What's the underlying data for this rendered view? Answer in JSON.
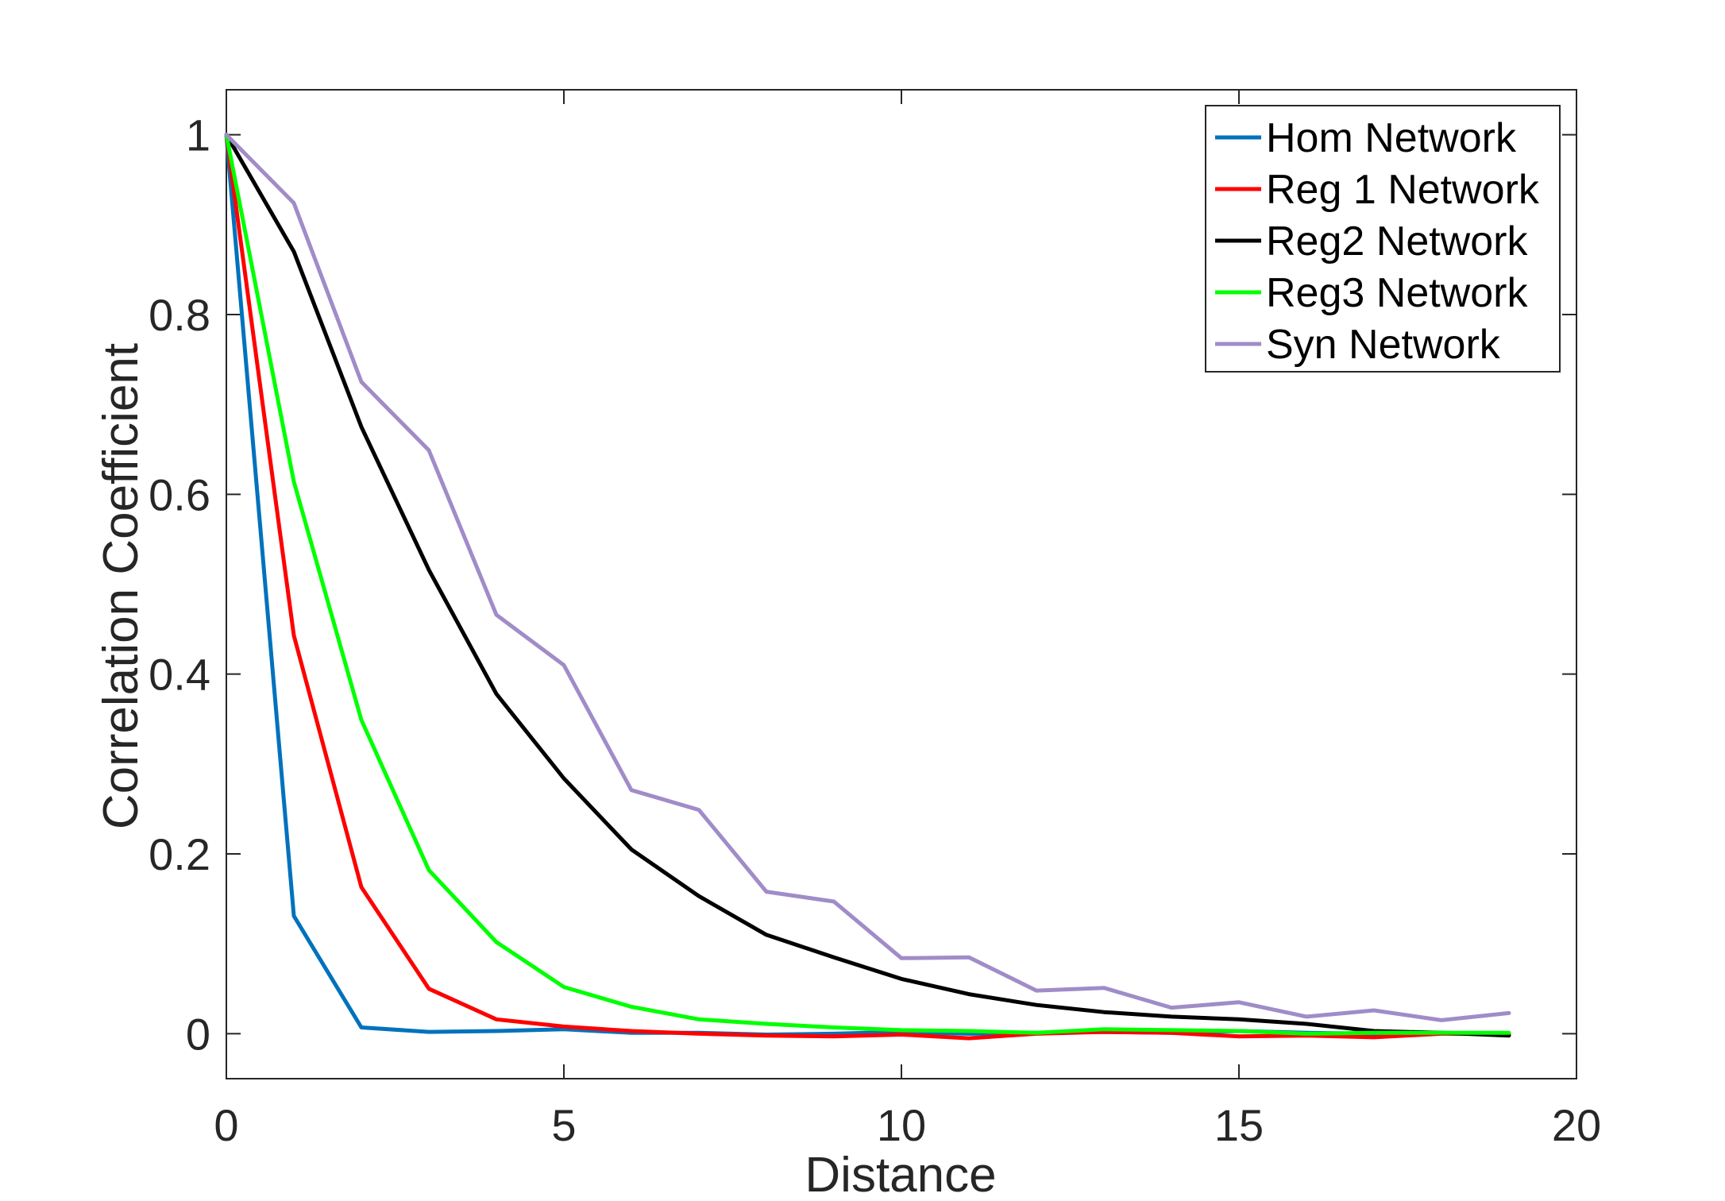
{
  "chart_data": {
    "type": "line",
    "title": "",
    "xlabel": "Distance",
    "ylabel": "Correlation Coefficient",
    "xlim": [
      0,
      20
    ],
    "ylim": [
      -0.05,
      1.05
    ],
    "xticks": [
      0,
      5,
      10,
      15,
      20
    ],
    "xtick_labels": [
      "0",
      "5",
      "10",
      "15",
      "20"
    ],
    "yticks": [
      0,
      0.2,
      0.4,
      0.6,
      0.8,
      1
    ],
    "ytick_labels": [
      "0",
      "0.2",
      "0.4",
      "0.6",
      "0.8",
      "1"
    ],
    "grid": false,
    "legend_position": "top-right",
    "x": [
      0,
      1,
      2,
      3,
      4,
      5,
      6,
      7,
      8,
      9,
      10,
      11,
      12,
      13,
      14,
      15,
      16,
      17,
      18,
      19
    ],
    "series": [
      {
        "name": "Hom Network",
        "color": "#0072BD",
        "values": [
          1.0,
          0.131,
          0.007,
          0.002,
          0.003,
          0.005,
          0.001,
          0.001,
          -0.001,
          0.0,
          0.002,
          0.0,
          0.001,
          0.002,
          0.001,
          0.003,
          0.001,
          0.0,
          0.001,
          0.0
        ]
      },
      {
        "name": "Reg 1 Network",
        "color": "#FF0000",
        "values": [
          1.0,
          0.443,
          0.163,
          0.05,
          0.016,
          0.008,
          0.003,
          0.0,
          -0.002,
          -0.003,
          -0.001,
          -0.005,
          0.0,
          0.002,
          0.001,
          -0.003,
          -0.002,
          -0.004,
          0.0,
          0.0
        ]
      },
      {
        "name": "Reg2 Network",
        "color": "#000000",
        "values": [
          1.0,
          0.87,
          0.675,
          0.516,
          0.378,
          0.284,
          0.205,
          0.153,
          0.11,
          0.085,
          0.061,
          0.044,
          0.032,
          0.024,
          0.019,
          0.016,
          0.011,
          0.003,
          0.001,
          -0.002
        ]
      },
      {
        "name": "Reg3 Network",
        "color": "#00FF00",
        "values": [
          1.0,
          0.614,
          0.349,
          0.182,
          0.102,
          0.052,
          0.03,
          0.016,
          0.011,
          0.007,
          0.004,
          0.003,
          0.001,
          0.005,
          0.004,
          0.003,
          0.0,
          0.001,
          0.001,
          0.001
        ]
      },
      {
        "name": "Syn Network",
        "color": "#A08CC8",
        "values": [
          1.0,
          0.924,
          0.725,
          0.649,
          0.466,
          0.41,
          0.271,
          0.249,
          0.158,
          0.147,
          0.084,
          0.085,
          0.048,
          0.051,
          0.029,
          0.035,
          0.019,
          0.026,
          0.015,
          0.023
        ]
      }
    ]
  }
}
